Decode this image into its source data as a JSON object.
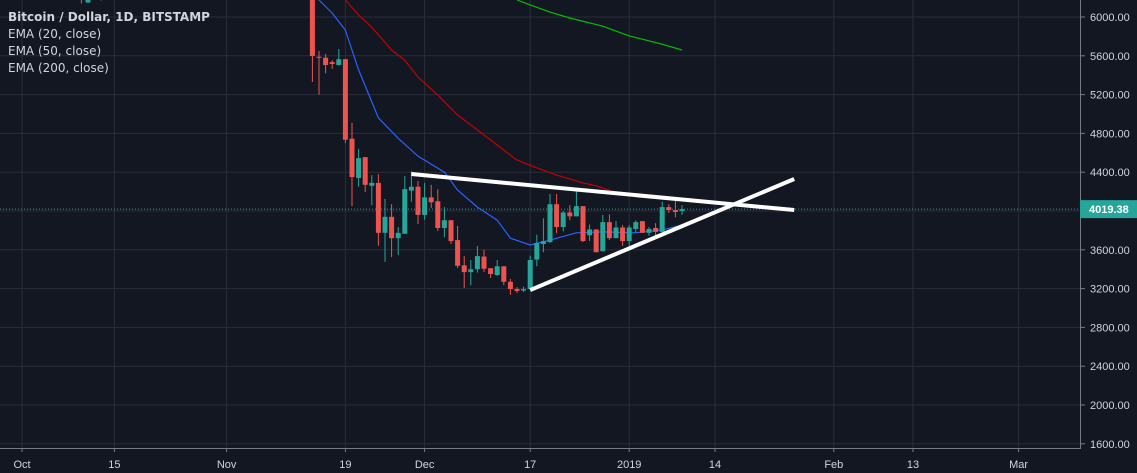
{
  "legend": {
    "title": "Bitcoin / Dollar, 1D, BITSTAMP",
    "indicators": [
      "EMA (20, close)",
      "EMA (50, close)",
      "EMA (200, close)"
    ]
  },
  "colors": {
    "background": "#131722",
    "grid": "#2a2e39",
    "up": "#26a69a",
    "down": "#ef5350",
    "ema20": "#2962ff",
    "ema50": "#c40000",
    "ema200": "#00c000",
    "trendline": "#ffffff",
    "text": "#d1d4dc"
  },
  "chart_data": {
    "type": "candlestick",
    "symbol": "Bitcoin / Dollar",
    "interval": "1D",
    "exchange": "BITSTAMP",
    "y_axis": {
      "ticks": [
        6000,
        5600,
        5200,
        4800,
        4400,
        4000,
        3600,
        3200,
        2800,
        2400,
        2000,
        1600
      ],
      "tick_labels": [
        "6000.00",
        "5600.00",
        "5200.00",
        "4800.00",
        "4400.00",
        "",
        "3600.00",
        "3200.00",
        "2800.00",
        "2400.00",
        "2000.00",
        "1600.00"
      ],
      "range": [
        1580,
        6175
      ]
    },
    "x_axis": {
      "range": [
        "2018-09-28",
        "2019-03-18"
      ],
      "ticks": [
        {
          "date": "2018-10-01",
          "label": "Oct"
        },
        {
          "date": "2018-10-15",
          "label": "15"
        },
        {
          "date": "2018-11-01",
          "label": "Nov"
        },
        {
          "date": "2018-11-19",
          "label": "19"
        },
        {
          "date": "2018-12-01",
          "label": "Dec"
        },
        {
          "date": "2018-12-17",
          "label": "17"
        },
        {
          "date": "2019-01-01",
          "label": "2019"
        },
        {
          "date": "2019-01-14",
          "label": "14"
        },
        {
          "date": "2019-02-01",
          "label": "Feb"
        },
        {
          "date": "2019-02-13",
          "label": "13"
        },
        {
          "date": "2019-03-01",
          "label": "Mar"
        }
      ]
    },
    "grid": true,
    "last_price": 4019.38,
    "last_price_label": "4019.38",
    "candles_columns": [
      "date",
      "open",
      "high",
      "low",
      "close"
    ],
    "candles": [
      [
        "2018-10-10",
        6200,
        6240,
        6140,
        6180
      ],
      [
        "2018-10-11",
        6150,
        6200,
        6140,
        6175
      ],
      [
        "2018-10-13",
        6190,
        6230,
        6170,
        6185
      ],
      [
        "2018-11-14",
        6330,
        6350,
        5330,
        5598
      ],
      [
        "2018-11-15",
        5590,
        5650,
        5200,
        5580
      ],
      [
        "2018-11-16",
        5580,
        5620,
        5420,
        5505
      ],
      [
        "2018-11-17",
        5535,
        5555,
        5465,
        5515
      ],
      [
        "2018-11-18",
        5505,
        5670,
        5500,
        5565
      ],
      [
        "2018-11-19",
        5565,
        5570,
        4700,
        4735
      ],
      [
        "2018-11-20",
        4745,
        4910,
        4050,
        4350
      ],
      [
        "2018-11-21",
        4340,
        4640,
        4250,
        4545
      ],
      [
        "2018-11-22",
        4555,
        4555,
        4195,
        4270
      ],
      [
        "2018-11-23",
        4260,
        4370,
        4060,
        4290
      ],
      [
        "2018-11-24",
        4290,
        4380,
        3640,
        3775
      ],
      [
        "2018-11-25",
        3775,
        4125,
        3475,
        3940
      ],
      [
        "2018-11-26",
        3940,
        4070,
        3525,
        3720
      ],
      [
        "2018-11-27",
        3720,
        3835,
        3545,
        3775
      ],
      [
        "2018-11-28",
        3765,
        4360,
        3765,
        4225
      ],
      [
        "2018-11-29",
        4210,
        4410,
        4095,
        4250
      ],
      [
        "2018-11-30",
        4250,
        4310,
        3865,
        3960
      ],
      [
        "2018-12-01",
        3960,
        4290,
        3910,
        4140
      ],
      [
        "2018-12-02",
        4140,
        4270,
        4030,
        4090
      ],
      [
        "2018-12-03",
        4100,
        4225,
        3795,
        3825
      ],
      [
        "2018-12-04",
        3825,
        4040,
        3730,
        3905
      ],
      [
        "2018-12-05",
        3905,
        3905,
        3660,
        3690
      ],
      [
        "2018-12-06",
        3700,
        3845,
        3410,
        3435
      ],
      [
        "2018-12-07",
        3440,
        3535,
        3205,
        3370
      ],
      [
        "2018-12-08",
        3370,
        3495,
        3235,
        3400
      ],
      [
        "2018-12-09",
        3400,
        3640,
        3365,
        3535
      ],
      [
        "2018-12-10",
        3530,
        3600,
        3370,
        3405
      ],
      [
        "2018-12-11",
        3410,
        3410,
        3310,
        3350
      ],
      [
        "2018-12-12",
        3340,
        3495,
        3330,
        3430
      ],
      [
        "2018-12-13",
        3430,
        3430,
        3235,
        3270
      ],
      [
        "2018-12-14",
        3270,
        3300,
        3135,
        3195
      ],
      [
        "2018-12-15",
        3195,
        3215,
        3155,
        3175
      ],
      [
        "2018-12-16",
        3180,
        3220,
        3165,
        3195
      ],
      [
        "2018-12-17",
        3195,
        3540,
        3190,
        3495
      ],
      [
        "2018-12-18",
        3500,
        3755,
        3430,
        3670
      ],
      [
        "2018-12-19",
        3660,
        3925,
        3575,
        3690
      ],
      [
        "2018-12-20",
        3680,
        4175,
        3670,
        4070
      ],
      [
        "2018-12-21",
        4070,
        4175,
        3770,
        3835
      ],
      [
        "2018-12-22",
        3835,
        4000,
        3790,
        3985
      ],
      [
        "2018-12-23",
        3985,
        4060,
        3905,
        3945
      ],
      [
        "2018-12-24",
        3945,
        4210,
        3945,
        4050
      ],
      [
        "2018-12-25",
        4050,
        4050,
        3680,
        3690
      ],
      [
        "2018-12-26",
        3750,
        3860,
        3690,
        3810
      ],
      [
        "2018-12-27",
        3810,
        3810,
        3575,
        3575
      ],
      [
        "2018-12-28",
        3585,
        3960,
        3585,
        3885
      ],
      [
        "2018-12-29",
        3885,
        3965,
        3700,
        3720
      ],
      [
        "2018-12-30",
        3720,
        3895,
        3720,
        3830
      ],
      [
        "2018-12-31",
        3830,
        3855,
        3640,
        3690
      ],
      [
        "2019-01-01",
        3690,
        3855,
        3640,
        3830
      ],
      [
        "2019-01-02",
        3815,
        3905,
        3775,
        3885
      ],
      [
        "2019-01-03",
        3895,
        3895,
        3775,
        3775
      ],
      [
        "2019-01-04",
        3775,
        3835,
        3745,
        3815
      ],
      [
        "2019-01-05",
        3825,
        3875,
        3745,
        3785
      ],
      [
        "2019-01-06",
        3785,
        4095,
        3785,
        4040
      ],
      [
        "2019-01-07",
        4040,
        4070,
        3980,
        4010
      ],
      [
        "2019-01-08",
        4010,
        4105,
        3935,
        3990
      ],
      [
        "2019-01-09",
        4000,
        4060,
        3960,
        4019.38
      ]
    ],
    "series": [
      {
        "name": "EMA (20, close)",
        "color_key": "ema20",
        "points": [
          [
            "2018-11-15",
            6175
          ],
          [
            "2018-11-17",
            6040
          ],
          [
            "2018-11-19",
            5865
          ],
          [
            "2018-11-21",
            5455
          ],
          [
            "2018-11-24",
            4960
          ],
          [
            "2018-11-27",
            4750
          ],
          [
            "2018-11-30",
            4565
          ],
          [
            "2018-12-04",
            4400
          ],
          [
            "2018-12-06",
            4215
          ],
          [
            "2018-12-09",
            4040
          ],
          [
            "2018-12-12",
            3905
          ],
          [
            "2018-12-14",
            3720
          ],
          [
            "2018-12-17",
            3650
          ],
          [
            "2018-12-20",
            3700
          ],
          [
            "2018-12-24",
            3775
          ],
          [
            "2018-12-28",
            3785
          ],
          [
            "2019-01-02",
            3775
          ],
          [
            "2019-01-06",
            3805
          ],
          [
            "2019-01-09",
            3855
          ]
        ]
      },
      {
        "name": "EMA (50, close)",
        "color_key": "ema50",
        "points": [
          [
            "2018-11-19",
            6175
          ],
          [
            "2018-11-21",
            6020
          ],
          [
            "2018-11-23",
            5895
          ],
          [
            "2018-11-26",
            5660
          ],
          [
            "2018-11-28",
            5555
          ],
          [
            "2018-11-30",
            5380
          ],
          [
            "2018-12-03",
            5195
          ],
          [
            "2018-12-06",
            4990
          ],
          [
            "2018-12-09",
            4835
          ],
          [
            "2018-12-12",
            4680
          ],
          [
            "2018-12-15",
            4525
          ],
          [
            "2018-12-18",
            4445
          ],
          [
            "2018-12-21",
            4370
          ],
          [
            "2018-12-25",
            4290
          ],
          [
            "2018-12-27",
            4260
          ],
          [
            "2018-12-31",
            4165
          ]
        ]
      },
      {
        "name": "EMA (200, close)",
        "color_key": "ema200",
        "points": [
          [
            "2018-12-15",
            6175
          ],
          [
            "2018-12-17",
            6125
          ],
          [
            "2018-12-20",
            6050
          ],
          [
            "2018-12-23",
            5990
          ],
          [
            "2018-12-28",
            5905
          ],
          [
            "2019-01-01",
            5805
          ],
          [
            "2019-01-06",
            5720
          ],
          [
            "2019-01-09",
            5660
          ]
        ]
      }
    ],
    "drawings": [
      {
        "type": "trendline",
        "name": "upper-trendline",
        "points": [
          [
            "2018-11-29",
            4381
          ],
          [
            "2019-01-26",
            4010
          ]
        ]
      },
      {
        "type": "trendline",
        "name": "lower-trendline",
        "points": [
          [
            "2018-12-17",
            3185
          ],
          [
            "2019-01-26",
            4330
          ]
        ]
      }
    ]
  }
}
